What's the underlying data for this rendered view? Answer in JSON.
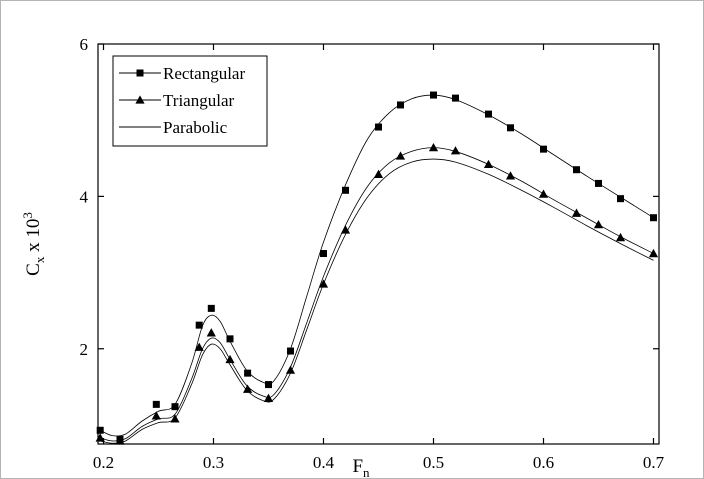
{
  "chart_data": {
    "type": "line",
    "title": "",
    "xlabel": "F",
    "xlabel_sub": "n",
    "ylabel": "C",
    "ylabel_sub": "x",
    "ylabel_rest": " x 10",
    "ylabel_sup": "3",
    "xlim": [
      0.195,
      0.705
    ],
    "ylim": [
      0.75,
      6.0
    ],
    "xticks": [
      0.2,
      0.3,
      0.4,
      0.5,
      0.6,
      0.7
    ],
    "xtick_labels": [
      "0.2",
      "0.3",
      "0.4",
      "0.5",
      "0.6",
      "0.7"
    ],
    "yticks": [
      2,
      4,
      6
    ],
    "ytick_labels": [
      "2",
      "4",
      "6"
    ],
    "grid": false,
    "legend_position": "top-left",
    "series": [
      {
        "name": "Rectangular",
        "marker": "square",
        "points": [
          [
            0.197,
            0.93
          ],
          [
            0.215,
            0.81
          ],
          [
            0.248,
            1.27
          ],
          [
            0.265,
            1.24
          ],
          [
            0.287,
            2.31
          ],
          [
            0.298,
            2.53
          ],
          [
            0.315,
            2.13
          ],
          [
            0.331,
            1.68
          ],
          [
            0.35,
            1.53
          ],
          [
            0.37,
            1.97
          ],
          [
            0.4,
            3.25
          ],
          [
            0.42,
            4.08
          ],
          [
            0.45,
            4.91
          ],
          [
            0.47,
            5.2
          ],
          [
            0.5,
            5.33
          ],
          [
            0.52,
            5.29
          ],
          [
            0.55,
            5.08
          ],
          [
            0.57,
            4.9
          ],
          [
            0.6,
            4.62
          ],
          [
            0.63,
            4.35
          ],
          [
            0.65,
            4.17
          ],
          [
            0.67,
            3.97
          ],
          [
            0.7,
            3.72
          ]
        ],
        "curve": [
          [
            0.197,
            0.93
          ],
          [
            0.208,
            0.86
          ],
          [
            0.22,
            0.88
          ],
          [
            0.235,
            1.05
          ],
          [
            0.25,
            1.18
          ],
          [
            0.265,
            1.27
          ],
          [
            0.28,
            1.8
          ],
          [
            0.29,
            2.3
          ],
          [
            0.298,
            2.44
          ],
          [
            0.306,
            2.36
          ],
          [
            0.315,
            2.1
          ],
          [
            0.33,
            1.72
          ],
          [
            0.345,
            1.56
          ],
          [
            0.355,
            1.58
          ],
          [
            0.37,
            2.0
          ],
          [
            0.385,
            2.7
          ],
          [
            0.4,
            3.4
          ],
          [
            0.42,
            4.15
          ],
          [
            0.44,
            4.75
          ],
          [
            0.46,
            5.1
          ],
          [
            0.48,
            5.28
          ],
          [
            0.5,
            5.33
          ],
          [
            0.52,
            5.27
          ],
          [
            0.55,
            5.07
          ],
          [
            0.58,
            4.82
          ],
          [
            0.61,
            4.54
          ],
          [
            0.64,
            4.26
          ],
          [
            0.67,
            3.99
          ],
          [
            0.7,
            3.72
          ]
        ]
      },
      {
        "name": "Triangular",
        "marker": "triangle",
        "points": [
          [
            0.197,
            0.83
          ],
          [
            0.215,
            0.79
          ],
          [
            0.248,
            1.12
          ],
          [
            0.265,
            1.08
          ],
          [
            0.287,
            2.02
          ],
          [
            0.298,
            2.21
          ],
          [
            0.315,
            1.86
          ],
          [
            0.331,
            1.47
          ],
          [
            0.35,
            1.35
          ],
          [
            0.37,
            1.72
          ],
          [
            0.4,
            2.85
          ],
          [
            0.42,
            3.56
          ],
          [
            0.45,
            4.29
          ],
          [
            0.47,
            4.53
          ],
          [
            0.5,
            4.64
          ],
          [
            0.52,
            4.6
          ],
          [
            0.55,
            4.42
          ],
          [
            0.57,
            4.27
          ],
          [
            0.6,
            4.03
          ],
          [
            0.63,
            3.78
          ],
          [
            0.65,
            3.63
          ],
          [
            0.67,
            3.46
          ],
          [
            0.7,
            3.25
          ]
        ],
        "curve": [
          [
            0.197,
            0.83
          ],
          [
            0.208,
            0.79
          ],
          [
            0.22,
            0.82
          ],
          [
            0.235,
            0.98
          ],
          [
            0.25,
            1.08
          ],
          [
            0.265,
            1.14
          ],
          [
            0.28,
            1.6
          ],
          [
            0.29,
            2.0
          ],
          [
            0.298,
            2.14
          ],
          [
            0.306,
            2.08
          ],
          [
            0.315,
            1.86
          ],
          [
            0.33,
            1.52
          ],
          [
            0.345,
            1.38
          ],
          [
            0.355,
            1.4
          ],
          [
            0.37,
            1.76
          ],
          [
            0.385,
            2.35
          ],
          [
            0.4,
            2.95
          ],
          [
            0.42,
            3.62
          ],
          [
            0.44,
            4.13
          ],
          [
            0.46,
            4.44
          ],
          [
            0.48,
            4.59
          ],
          [
            0.5,
            4.64
          ],
          [
            0.52,
            4.59
          ],
          [
            0.55,
            4.42
          ],
          [
            0.58,
            4.2
          ],
          [
            0.61,
            3.95
          ],
          [
            0.64,
            3.71
          ],
          [
            0.67,
            3.47
          ],
          [
            0.7,
            3.25
          ]
        ]
      },
      {
        "name": "Parabolic",
        "marker": "none",
        "points": [],
        "curve": [
          [
            0.197,
            0.79
          ],
          [
            0.208,
            0.76
          ],
          [
            0.22,
            0.79
          ],
          [
            0.235,
            0.94
          ],
          [
            0.25,
            1.03
          ],
          [
            0.265,
            1.09
          ],
          [
            0.28,
            1.53
          ],
          [
            0.29,
            1.92
          ],
          [
            0.298,
            2.06
          ],
          [
            0.306,
            2.0
          ],
          [
            0.315,
            1.79
          ],
          [
            0.33,
            1.46
          ],
          [
            0.345,
            1.32
          ],
          [
            0.355,
            1.34
          ],
          [
            0.37,
            1.68
          ],
          [
            0.385,
            2.26
          ],
          [
            0.4,
            2.85
          ],
          [
            0.42,
            3.5
          ],
          [
            0.44,
            3.99
          ],
          [
            0.46,
            4.3
          ],
          [
            0.48,
            4.45
          ],
          [
            0.5,
            4.49
          ],
          [
            0.52,
            4.45
          ],
          [
            0.55,
            4.29
          ],
          [
            0.58,
            4.08
          ],
          [
            0.61,
            3.85
          ],
          [
            0.64,
            3.61
          ],
          [
            0.67,
            3.38
          ],
          [
            0.7,
            3.16
          ]
        ]
      }
    ]
  }
}
